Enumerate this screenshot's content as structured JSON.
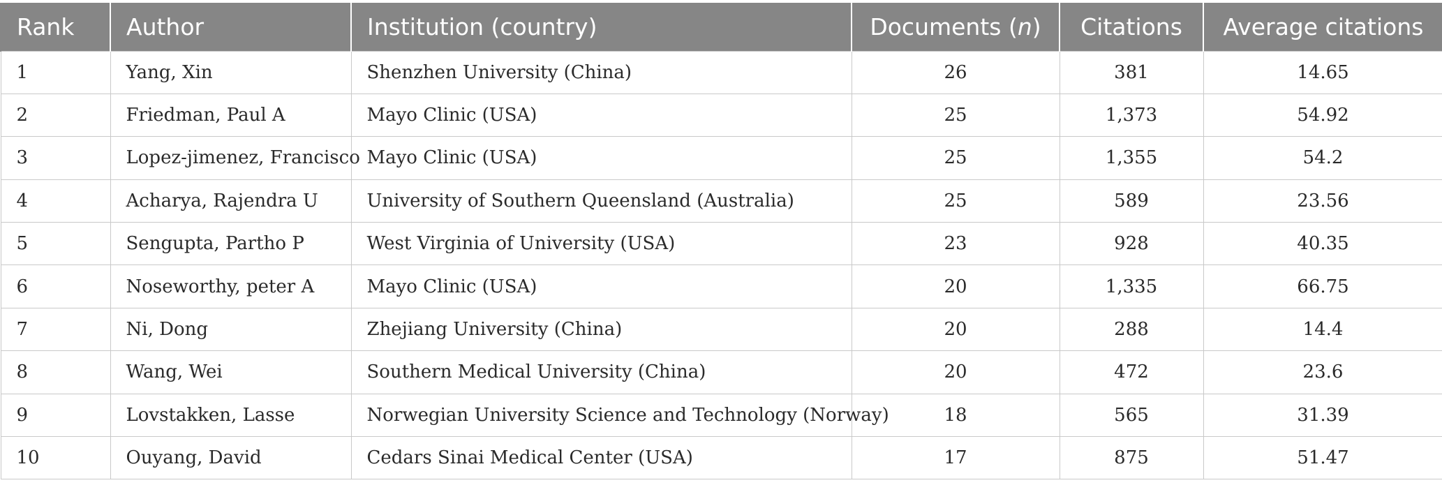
{
  "table": {
    "headers": {
      "rank": "Rank",
      "author": "Author",
      "institution": "Institution (country)",
      "documents_prefix": "Documents (",
      "documents_n": "n",
      "documents_suffix": ")",
      "citations": "Citations",
      "average_citations": "Average citations"
    },
    "rows": [
      {
        "rank": "1",
        "author": "Yang, Xin",
        "institution": "Shenzhen University (China)",
        "documents": "26",
        "citations": "381",
        "average": "14.65"
      },
      {
        "rank": "2",
        "author": "Friedman, Paul A",
        "institution": "Mayo Clinic (USA)",
        "documents": "25",
        "citations": "1,373",
        "average": "54.92"
      },
      {
        "rank": "3",
        "author": "Lopez-jimenez, Francisco",
        "institution": "Mayo Clinic (USA)",
        "documents": "25",
        "citations": "1,355",
        "average": "54.2"
      },
      {
        "rank": "4",
        "author": "Acharya, Rajendra U",
        "institution": "University of Southern Queensland (Australia)",
        "documents": "25",
        "citations": "589",
        "average": "23.56"
      },
      {
        "rank": "5",
        "author": "Sengupta, Partho P",
        "institution": "West Virginia of University (USA)",
        "documents": "23",
        "citations": "928",
        "average": "40.35"
      },
      {
        "rank": "6",
        "author": "Noseworthy, peter A",
        "institution": "Mayo Clinic (USA)",
        "documents": "20",
        "citations": "1,335",
        "average": "66.75"
      },
      {
        "rank": "7",
        "author": "Ni, Dong",
        "institution": "Zhejiang University (China)",
        "documents": "20",
        "citations": "288",
        "average": "14.4"
      },
      {
        "rank": "8",
        "author": "Wang, Wei",
        "institution": "Southern Medical University (China)",
        "documents": "20",
        "citations": "472",
        "average": "23.6"
      },
      {
        "rank": "9",
        "author": "Lovstakken, Lasse",
        "institution": "Norwegian University Science and Technology (Norway)",
        "documents": "18",
        "citations": "565",
        "average": "31.39"
      },
      {
        "rank": "10",
        "author": "Ouyang, David",
        "institution": "Cedars Sinai Medical Center (USA)",
        "documents": "17",
        "citations": "875",
        "average": "51.47"
      }
    ]
  }
}
